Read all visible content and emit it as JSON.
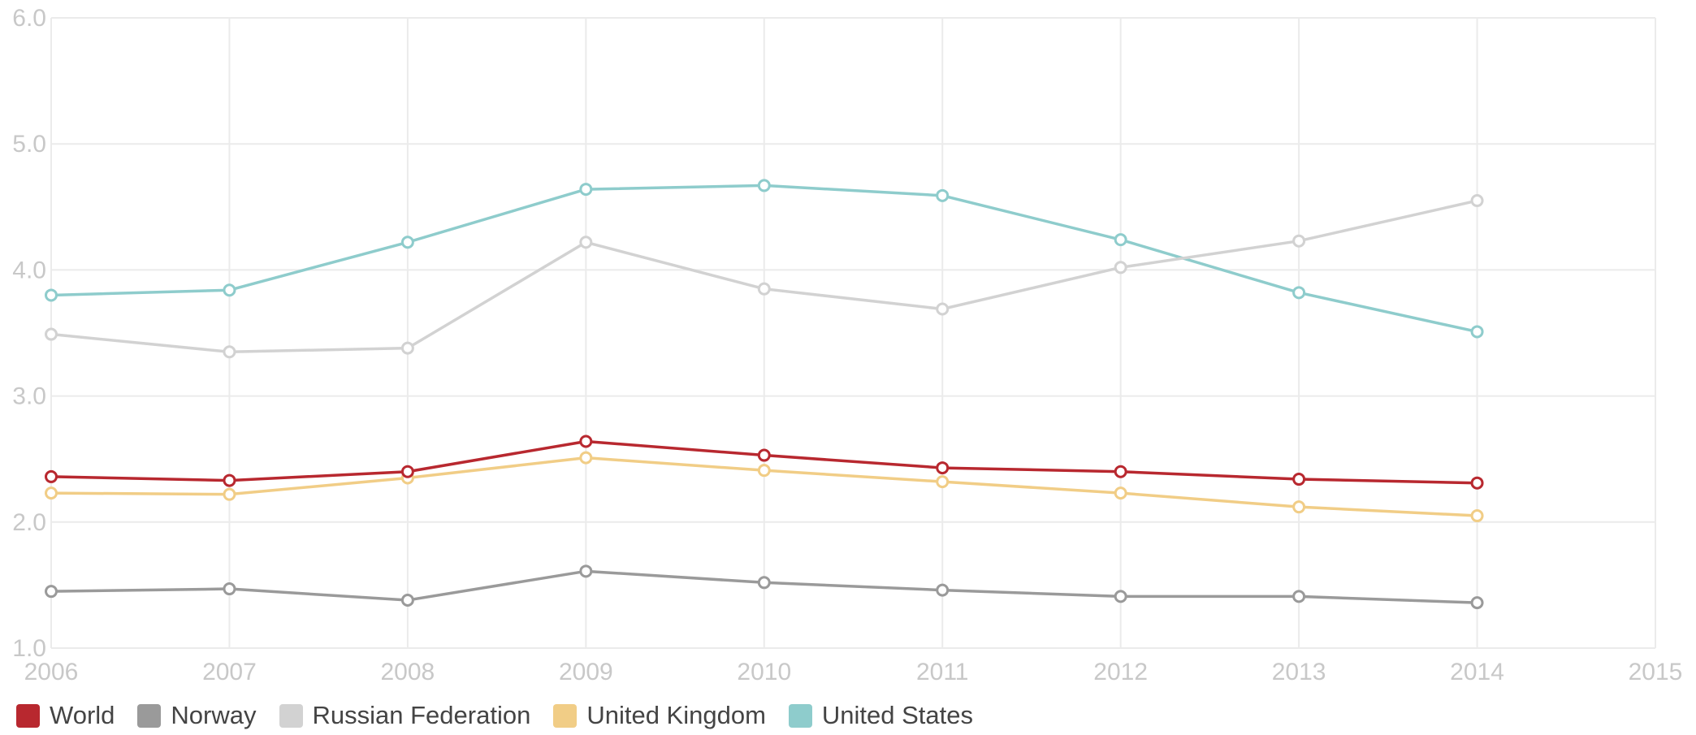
{
  "chart_data": {
    "type": "line",
    "title": "",
    "xlabel": "",
    "ylabel": "",
    "x": [
      2006,
      2007,
      2008,
      2009,
      2010,
      2011,
      2012,
      2013,
      2014
    ],
    "xlim": [
      2006,
      2015
    ],
    "ylim": [
      1.0,
      6.0
    ],
    "x_ticks": [
      "2006",
      "2007",
      "2008",
      "2009",
      "2010",
      "2011",
      "2012",
      "2013",
      "2014",
      "2015"
    ],
    "y_ticks": [
      "1.0",
      "2.0",
      "3.0",
      "4.0",
      "5.0",
      "6.0"
    ],
    "grid": true,
    "legend_position": "bottom-left",
    "series": [
      {
        "name": "World",
        "color": "#b8282f",
        "values": [
          2.36,
          2.33,
          2.4,
          2.64,
          2.53,
          2.43,
          2.4,
          2.34,
          2.31
        ]
      },
      {
        "name": "Norway",
        "color": "#9a9a9a",
        "values": [
          1.45,
          1.47,
          1.38,
          1.61,
          1.52,
          1.46,
          1.41,
          1.41,
          1.36
        ]
      },
      {
        "name": "Russian Federation",
        "color": "#d2d2d2",
        "values": [
          3.49,
          3.35,
          3.38,
          4.22,
          3.85,
          3.69,
          4.02,
          4.23,
          4.55
        ]
      },
      {
        "name": "United Kingdom",
        "color": "#f1cd86",
        "values": [
          2.23,
          2.22,
          2.35,
          2.51,
          2.41,
          2.32,
          2.23,
          2.12,
          2.05
        ]
      },
      {
        "name": "United States",
        "color": "#8ecccc",
        "values": [
          3.8,
          3.84,
          4.22,
          4.64,
          4.67,
          4.59,
          4.24,
          3.82,
          3.51
        ]
      }
    ]
  }
}
